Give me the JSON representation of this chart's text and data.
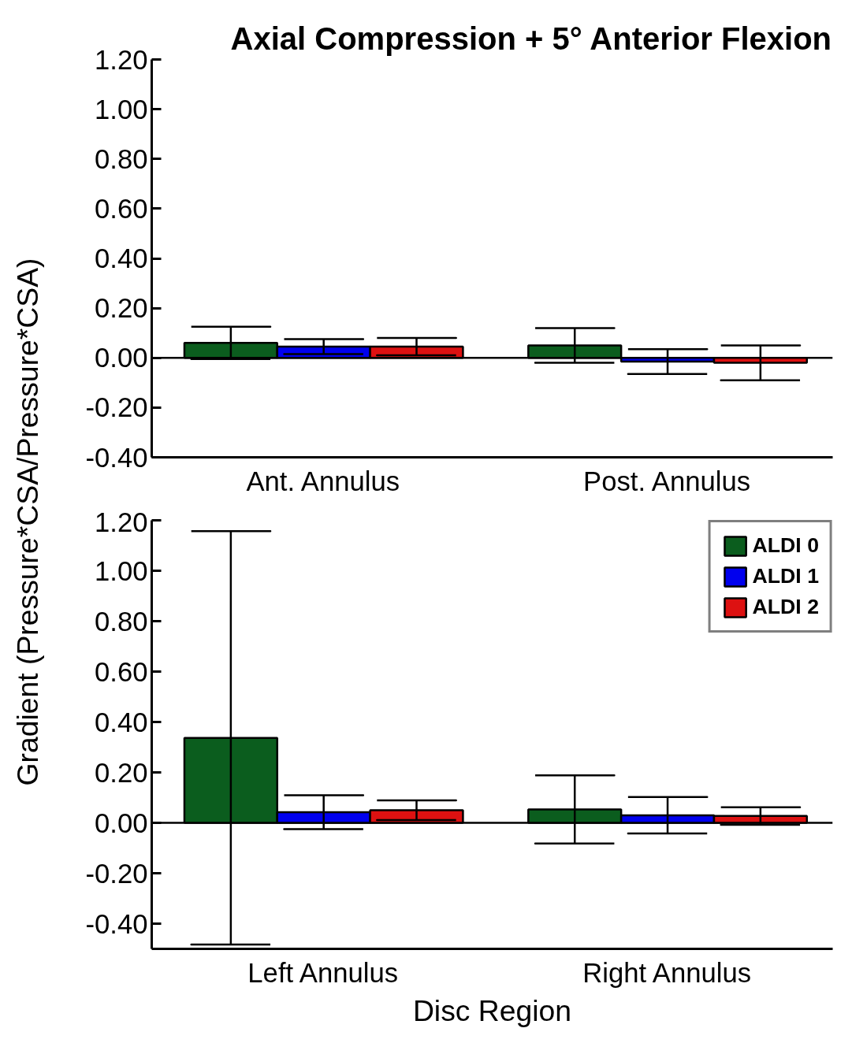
{
  "chart_data": [
    {
      "type": "bar",
      "title": "Axial Compression + 5° Anterior Flexion",
      "ylabel": "Gradient (Pressure*CSA/Pressure*CSA)",
      "categories": [
        "Ant. Annulus",
        "Post. Annulus"
      ],
      "ylim": [
        -0.4,
        1.2
      ],
      "yticks": [
        {
          "value": -0.4,
          "label": "-0.40"
        },
        {
          "value": -0.2,
          "label": "-0.20"
        },
        {
          "value": 0,
          "label": "0.00"
        },
        {
          "value": 0.2,
          "label": "0.20"
        },
        {
          "value": 0.4,
          "label": "0.40"
        },
        {
          "value": 0.6,
          "label": "0.60"
        },
        {
          "value": 0.8,
          "label": "0.80"
        },
        {
          "value": 1.0,
          "label": "1.00"
        },
        {
          "value": 1.2,
          "label": "1.20"
        }
      ],
      "grid": false,
      "ref_lines": [
        {
          "axis": "y",
          "value": 0
        }
      ],
      "series": [
        {
          "color": "#0b5d1e",
          "values": [
            0.06,
            0.05
          ],
          "errors": [
            0.065,
            0.07
          ]
        },
        {
          "color": "#0000ee",
          "values": [
            0.045,
            -0.015
          ],
          "errors": [
            0.03,
            0.05
          ]
        },
        {
          "color": "#dd1111",
          "values": [
            0.045,
            -0.02
          ],
          "errors": [
            0.035,
            0.07
          ]
        }
      ]
    },
    {
      "type": "bar",
      "xlabel": "Disc Region",
      "categories": [
        "Left Annulus",
        "Right Annulus"
      ],
      "ylim": [
        -0.5,
        1.2
      ],
      "yticks": [
        {
          "value": -0.4,
          "label": "-0.40"
        },
        {
          "value": -0.2,
          "label": "-0.20"
        },
        {
          "value": 0,
          "label": "0.00"
        },
        {
          "value": 0.2,
          "label": "0.20"
        },
        {
          "value": 0.4,
          "label": "0.40"
        },
        {
          "value": 0.6,
          "label": "0.60"
        },
        {
          "value": 0.8,
          "label": "0.80"
        },
        {
          "value": 1.0,
          "label": "1.00"
        },
        {
          "value": 1.2,
          "label": "1.20"
        }
      ],
      "grid": false,
      "legend": "top right",
      "ref_lines": [
        {
          "axis": "y",
          "value": 0
        }
      ],
      "series": [
        {
          "name": "ALDI 0",
          "color": "#0b5d1e",
          "values": [
            0.337,
            0.053
          ],
          "errors": [
            0.82,
            0.135
          ]
        },
        {
          "name": "ALDI 1",
          "color": "#0000ee",
          "values": [
            0.042,
            0.03
          ],
          "errors": [
            0.067,
            0.072
          ]
        },
        {
          "name": "ALDI 2",
          "color": "#dd1111",
          "values": [
            0.05,
            0.027
          ],
          "errors": [
            0.039,
            0.035
          ]
        }
      ]
    }
  ]
}
